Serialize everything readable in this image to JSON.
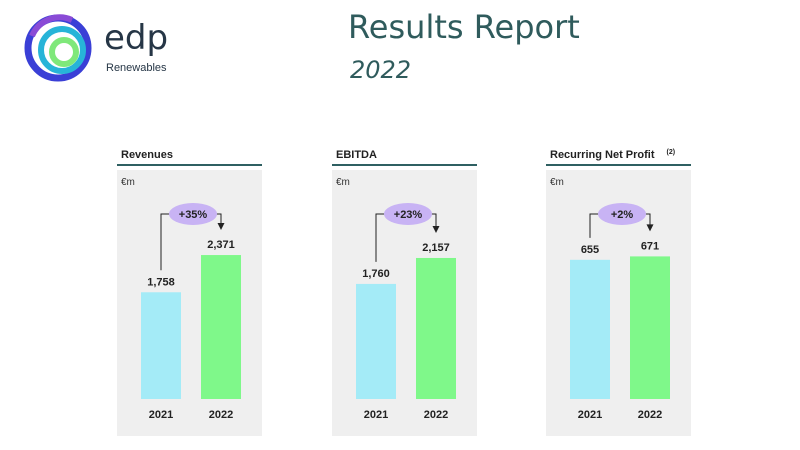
{
  "brand": {
    "name": "edp",
    "subtitle": "Renewables",
    "colors": {
      "ring_outer": "#3a3fd6",
      "ring_mid": "#27b4d8",
      "ring_inner": "#7fe87a",
      "text": "#263646"
    }
  },
  "header": {
    "title": "Results Report",
    "year": "2022"
  },
  "colors": {
    "bar_2021": "#a4ebf7",
    "bar_2022": "#7ff88a",
    "bubble": "#c8b3f4",
    "panel_bg": "#efefef",
    "rule": "#2f6062",
    "title": "#2f5b5c"
  },
  "chart_data": [
    {
      "type": "bar",
      "title": "Revenues",
      "note": "",
      "unit": "€m",
      "categories": [
        "2021",
        "2022"
      ],
      "values": [
        1758,
        2371
      ],
      "value_labels": [
        "1,758",
        "2,371"
      ],
      "change_label": "+35%",
      "ylim": [
        0,
        2800
      ]
    },
    {
      "type": "bar",
      "title": "EBITDA",
      "note": "",
      "unit": "€m",
      "categories": [
        "2021",
        "2022"
      ],
      "values": [
        1760,
        2157
      ],
      "value_labels": [
        "1,760",
        "2,157"
      ],
      "change_label": "+23%",
      "ylim": [
        0,
        2600
      ]
    },
    {
      "type": "bar",
      "title": "Recurring Net Profit",
      "note": "(2)",
      "unit": "€m",
      "categories": [
        "2021",
        "2022"
      ],
      "values": [
        655,
        671
      ],
      "value_labels": [
        "655",
        "671"
      ],
      "change_label": "+2%",
      "ylim": [
        0,
        800
      ]
    }
  ]
}
